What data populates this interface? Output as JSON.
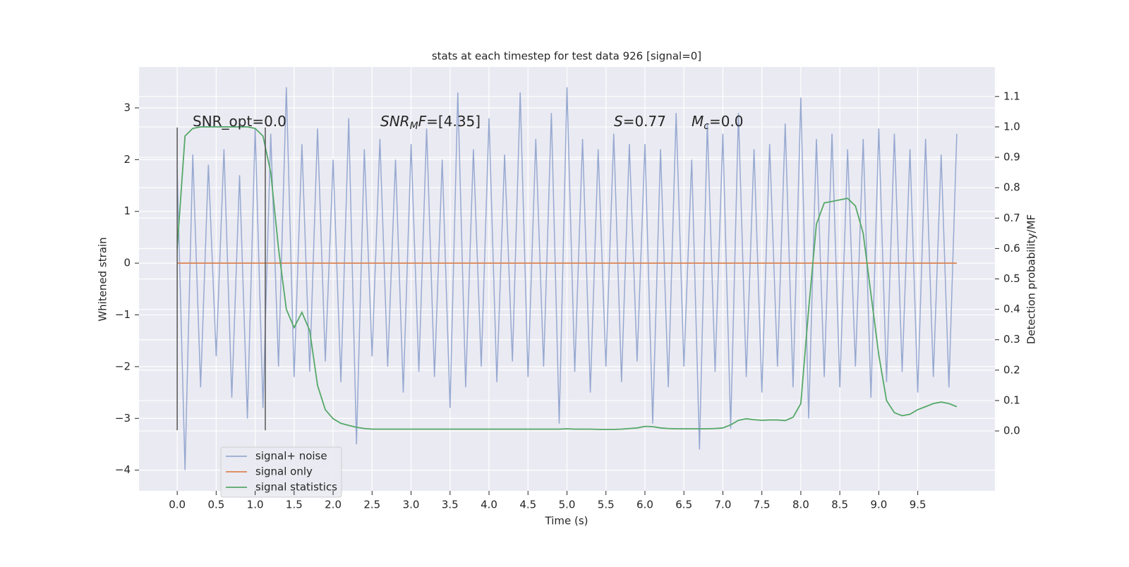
{
  "chart_data": {
    "type": "line",
    "title": "stats at each timestep for test data 926 [signal=0]",
    "xlabel": "Time (s)",
    "ylabel": "Whitened strain",
    "y2label": "Detection probability/MF",
    "x": [
      0.0,
      0.1,
      0.2,
      0.3,
      0.4,
      0.5,
      0.6,
      0.7,
      0.8,
      0.9,
      1.0,
      1.1,
      1.2,
      1.3,
      1.4,
      1.5,
      1.6,
      1.7,
      1.8,
      1.9,
      2.0,
      2.1,
      2.2,
      2.3,
      2.4,
      2.5,
      2.6,
      2.7,
      2.8,
      2.9,
      3.0,
      3.1,
      3.2,
      3.3,
      3.4,
      3.5,
      3.6,
      3.7,
      3.8,
      3.9,
      4.0,
      4.1,
      4.2,
      4.3,
      4.4,
      4.5,
      4.6,
      4.7,
      4.8,
      4.9,
      5.0,
      5.1,
      5.2,
      5.3,
      5.4,
      5.5,
      5.6,
      5.7,
      5.8,
      5.9,
      6.0,
      6.1,
      6.2,
      6.3,
      6.4,
      6.5,
      6.6,
      6.7,
      6.8,
      6.9,
      7.0,
      7.1,
      7.2,
      7.3,
      7.4,
      7.5,
      7.6,
      7.7,
      7.8,
      7.9,
      8.0,
      8.1,
      8.2,
      8.3,
      8.4,
      8.5,
      8.6,
      8.7,
      8.8,
      8.9,
      9.0,
      9.1,
      9.2,
      9.3,
      9.4,
      9.5,
      9.6,
      9.7,
      9.8,
      9.9,
      10.0
    ],
    "series": [
      {
        "name": "signal+ noise",
        "color": "#97a9d1",
        "values": [
          1.8,
          -4.0,
          2.1,
          -2.4,
          1.9,
          -1.8,
          2.2,
          -2.6,
          1.7,
          -3.0,
          2.6,
          -2.8,
          2.5,
          -2.0,
          3.4,
          -2.2,
          2.3,
          -2.1,
          2.6,
          -1.9,
          2.0,
          -2.3,
          2.8,
          -3.5,
          2.2,
          -1.8,
          2.4,
          -2.0,
          2.0,
          -2.5,
          2.3,
          -2.1,
          2.6,
          -2.2,
          2.0,
          -2.8,
          3.3,
          -2.4,
          2.2,
          -2.0,
          2.8,
          -2.3,
          2.1,
          -1.9,
          3.3,
          -2.2,
          2.4,
          -2.0,
          2.9,
          -3.1,
          3.4,
          -2.1,
          2.4,
          -2.5,
          2.2,
          -2.0,
          2.5,
          -2.3,
          2.3,
          -1.9,
          2.3,
          -3.1,
          2.2,
          -2.4,
          2.9,
          -2.0,
          2.0,
          -3.6,
          2.7,
          -2.1,
          2.5,
          -3.2,
          2.9,
          -2.2,
          2.2,
          -2.5,
          2.3,
          -2.0,
          2.7,
          -2.4,
          3.2,
          -3.0,
          2.4,
          -2.2,
          2.5,
          -2.4,
          2.2,
          -2.0,
          2.4,
          -2.6,
          2.6,
          -2.3,
          2.5,
          -2.1,
          2.2,
          -2.5,
          2.4,
          -2.2,
          2.1,
          -2.4,
          2.5
        ]
      },
      {
        "name": "signal only",
        "color": "#dd8452",
        "values": [
          0,
          0,
          0,
          0,
          0,
          0,
          0,
          0,
          0,
          0,
          0,
          0,
          0,
          0,
          0,
          0,
          0,
          0,
          0,
          0,
          0,
          0,
          0,
          0,
          0,
          0,
          0,
          0,
          0,
          0,
          0,
          0,
          0,
          0,
          0,
          0,
          0,
          0,
          0,
          0,
          0,
          0,
          0,
          0,
          0,
          0,
          0,
          0,
          0,
          0,
          0,
          0,
          0,
          0,
          0,
          0,
          0,
          0,
          0,
          0,
          0,
          0,
          0,
          0,
          0,
          0,
          0,
          0,
          0,
          0,
          0,
          0,
          0,
          0,
          0,
          0,
          0,
          0,
          0,
          0,
          0,
          0,
          0,
          0,
          0,
          0,
          0,
          0,
          0,
          0,
          0,
          0,
          0,
          0,
          0,
          0,
          0,
          0,
          0,
          0,
          0
        ]
      },
      {
        "name": "signal statistics",
        "color": "#55a868",
        "axis": "y2",
        "values": [
          0.6,
          0.97,
          0.995,
          1.0,
          1.0,
          1.0,
          1.0,
          1.0,
          1.0,
          1.0,
          0.995,
          0.97,
          0.85,
          0.6,
          0.4,
          0.34,
          0.39,
          0.33,
          0.15,
          0.07,
          0.04,
          0.025,
          0.018,
          0.012,
          0.008,
          0.006,
          0.006,
          0.006,
          0.006,
          0.006,
          0.006,
          0.006,
          0.006,
          0.006,
          0.006,
          0.006,
          0.006,
          0.006,
          0.006,
          0.006,
          0.006,
          0.006,
          0.006,
          0.006,
          0.006,
          0.006,
          0.006,
          0.006,
          0.006,
          0.006,
          0.007,
          0.006,
          0.006,
          0.006,
          0.005,
          0.005,
          0.005,
          0.006,
          0.008,
          0.01,
          0.015,
          0.014,
          0.01,
          0.008,
          0.007,
          0.007,
          0.007,
          0.007,
          0.007,
          0.008,
          0.01,
          0.02,
          0.035,
          0.04,
          0.037,
          0.035,
          0.036,
          0.036,
          0.034,
          0.045,
          0.09,
          0.4,
          0.68,
          0.75,
          0.755,
          0.76,
          0.765,
          0.74,
          0.65,
          0.45,
          0.25,
          0.1,
          0.06,
          0.05,
          0.055,
          0.07,
          0.08,
          0.09,
          0.095,
          0.09,
          0.08
        ]
      }
    ],
    "vlines": [
      0,
      1.13
    ],
    "vline_span": [
      -3.23,
      2.62
    ],
    "vline_color": "#555555",
    "annotations": [
      [
        {
          "text": "SNR_opt=0.0"
        }
      ],
      [
        {
          "text": "SNR",
          "italic": true
        },
        {
          "text": "M",
          "italic": true,
          "sub": true
        },
        {
          "text": "F",
          "italic": true
        },
        {
          "text": "=[4.35]"
        }
      ],
      [
        {
          "text": "S",
          "italic": true
        },
        {
          "text": "=0.77"
        }
      ],
      [
        {
          "text": "M",
          "italic": true
        },
        {
          "text": "c",
          "italic": true,
          "sub": true
        },
        {
          "text": "=0.0"
        }
      ]
    ],
    "xlim": [
      -0.49,
      10.49
    ],
    "ylim": [
      -4.4,
      3.79
    ],
    "y2lim": [
      -0.197,
      1.197
    ],
    "xticks": [
      {
        "value": 0,
        "label": "0.0"
      },
      0.5,
      {
        "value": 1,
        "label": "1.0"
      },
      1.5,
      {
        "value": 2,
        "label": "2.0"
      },
      2.5,
      {
        "value": 3,
        "label": "3.0"
      },
      3.5,
      {
        "value": 4,
        "label": "4.0"
      },
      4.5,
      {
        "value": 5,
        "label": "5.0"
      },
      5.5,
      {
        "value": 6,
        "label": "6.0"
      },
      6.5,
      {
        "value": 7,
        "label": "7.0"
      },
      7.5,
      {
        "value": 8,
        "label": "8.0"
      },
      8.5,
      {
        "value": 9,
        "label": "9.0"
      },
      9.5
    ],
    "yticks": [
      {
        "value": -4,
        "label": "−4"
      },
      {
        "value": -3,
        "label": "−3"
      },
      {
        "value": -2,
        "label": "−2"
      },
      {
        "value": -1,
        "label": "−1"
      },
      0,
      1,
      2,
      3
    ],
    "y2ticks": [
      {
        "value": 0,
        "label": "0.0"
      },
      0.1,
      0.2,
      0.3,
      0.4,
      0.5,
      0.6,
      0.7,
      0.8,
      0.9,
      {
        "value": 1,
        "label": "1.0"
      },
      1.1
    ],
    "grid": true
  }
}
